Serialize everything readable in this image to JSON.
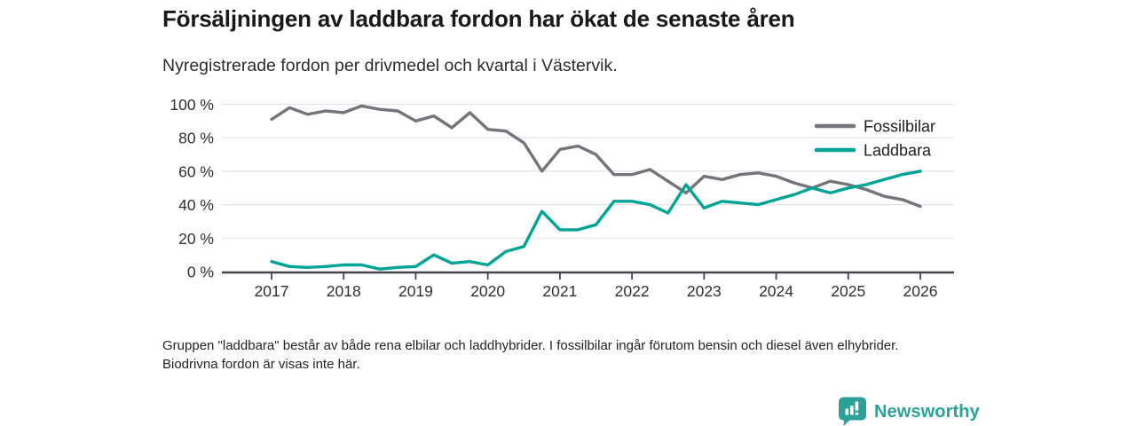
{
  "header": {
    "title": "Försäljningen av laddbara fordon har ökat de senaste åren",
    "subtitle": "Nyregistrerade fordon per drivmedel och kvartal i Västervik."
  },
  "chart_data": {
    "type": "line",
    "title": "Försäljningen av laddbara fordon har ökat de senaste åren",
    "subtitle": "Nyregistrerade fordon per drivmedel och kvartal i Västervik.",
    "x_unit": "quarter",
    "x_start": "2017 Q1",
    "x_end": "2026 Q1",
    "x_tick_labels": [
      "2017",
      "2018",
      "2019",
      "2020",
      "2021",
      "2022",
      "2023",
      "2024",
      "2025",
      "2026"
    ],
    "y_tick_labels": [
      "100 %",
      "80 %",
      "60 %",
      "40 %",
      "20 %",
      "0 %"
    ],
    "y_tick_values": [
      100,
      80,
      60,
      40,
      20,
      0
    ],
    "ylim": [
      0,
      100
    ],
    "grid": "horizontal",
    "legend_position": "top-right",
    "colors": {
      "axis": "#45454b",
      "gridline": "#e2e2e2",
      "tick_text": "#303030"
    },
    "series": [
      {
        "name": "Fossilbilar",
        "color": "#74747a",
        "values": [
          91,
          98,
          94,
          96,
          95,
          99,
          97,
          96,
          90,
          93,
          86,
          95,
          85,
          84,
          77,
          60,
          73,
          75,
          70,
          58,
          58,
          61,
          54,
          47,
          57,
          55,
          58,
          59,
          57,
          53,
          50,
          54,
          52,
          49,
          45,
          43,
          39
        ]
      },
      {
        "name": "Laddbara",
        "color": "#00a396",
        "values": [
          6,
          3,
          2.5,
          3,
          4,
          4,
          1.5,
          2.5,
          3,
          10,
          5,
          6,
          4,
          12,
          15,
          36,
          25,
          25,
          28,
          42,
          42,
          40,
          35,
          52,
          38,
          42,
          41,
          40,
          43,
          46,
          50,
          47,
          50,
          52,
          55,
          58,
          60
        ]
      }
    ]
  },
  "footer": {
    "note": "Gruppen \"laddbara\" består av både rena elbilar och laddhybrider. I fossilbilar ingår förutom bensin och diesel även elhybrider. Biodrivna fordon är visas inte här."
  },
  "branding": {
    "name": "Newsworthy",
    "color": "#2ba19a",
    "icon": "bar-chart-badge-icon"
  }
}
